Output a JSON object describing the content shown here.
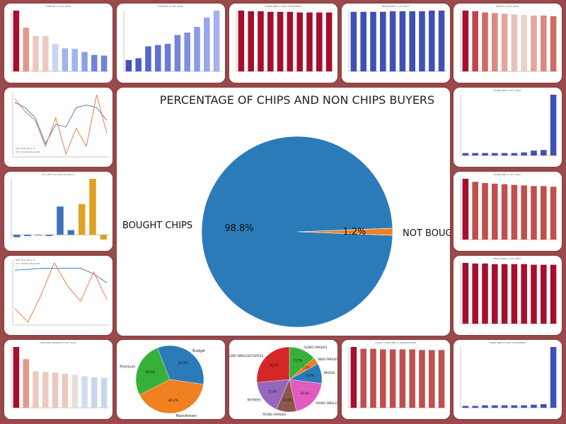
{
  "page": {
    "background": "#9b4a4c"
  },
  "chart_data": [
    {
      "id": "t1",
      "type": "bar",
      "title": "COMPANY vs QTY_SOLD",
      "values": [
        100,
        72,
        58,
        58,
        45,
        38,
        37,
        32,
        27,
        26
      ],
      "colors": [
        "#a50f2d",
        "#e3998a",
        "#ecc9bf",
        "#ecc9bf",
        "#c9d6f0",
        "#9eb6ea",
        "#9eb6ea",
        "#8aa2e6",
        "#6f85da",
        "#6f85da"
      ]
    },
    {
      "id": "t2",
      "type": "bar",
      "title": "COMPANY vs QTY_SOLD",
      "values": [
        18,
        21,
        40,
        42,
        44,
        58,
        62,
        71,
        86,
        97
      ],
      "colors": [
        "#3f51b5",
        "#4b5dc0",
        "#5567c8",
        "#5f71cf",
        "#6a7bd6",
        "#7585dc",
        "#8090e0",
        "#8c9be5",
        "#98a6ea",
        "#a4b1ee"
      ]
    },
    {
      "id": "t3",
      "type": "bar",
      "title": "STORE_NBR vs DAILY CUSTOMERS",
      "values": [
        98,
        97,
        97,
        96,
        96,
        96,
        95,
        95,
        95,
        95
      ],
      "colors": [
        "#a50f2d",
        "#a50f2d",
        "#a50f2d",
        "#a50f2d",
        "#a50f2d",
        "#a50f2d",
        "#a50f2d",
        "#a50f2d",
        "#a50f2d",
        "#a50f2d"
      ]
    },
    {
      "id": "t4",
      "type": "bar",
      "title": "PROD NAME vs QTY SOLD",
      "values": [
        97,
        97,
        97,
        97,
        98,
        98,
        98,
        98,
        99,
        99
      ],
      "colors": [
        "#3f51b5",
        "#3f51b5",
        "#3f51b5",
        "#3f51b5",
        "#3f51b5",
        "#3f51b5",
        "#3f51b5",
        "#3f51b5",
        "#3f51b5",
        "#3f51b5"
      ]
    },
    {
      "id": "t5",
      "type": "bar",
      "title": "MONTH vs QTY_SOLD",
      "values": [
        98,
        97,
        95,
        94,
        93,
        92,
        91,
        90,
        90,
        89
      ],
      "colors": [
        "#a50f2d",
        "#c0444a",
        "#cf6a65",
        "#d98a80",
        "#e2a79c",
        "#e9c0b8",
        "#eed0c9",
        "#e2a79c",
        "#d98a80",
        "#cf6a65"
      ]
    },
    {
      "id": "t7",
      "type": "bar",
      "title": "STORE_NBR vs QTY_SOLD",
      "values": [
        4,
        4,
        4,
        4,
        4,
        4,
        5,
        8,
        9,
        100
      ],
      "colors": [
        "#3f51b5",
        "#3f51b5",
        "#3f51b5",
        "#3f51b5",
        "#3f51b5",
        "#3f51b5",
        "#3f51b5",
        "#3f51b5",
        "#3f51b5",
        "#3f51b5"
      ]
    },
    {
      "id": "t9",
      "type": "bar",
      "title": "STORE_NBR vs QTY_SOLD",
      "values": [
        100,
        95,
        93,
        92,
        91,
        90,
        89,
        88,
        88,
        87
      ],
      "colors": [
        "#a50f2d",
        "#c0504d",
        "#c0504d",
        "#c0504d",
        "#c0504d",
        "#c0504d",
        "#c0504d",
        "#c0504d",
        "#c0504d",
        "#c0504d"
      ]
    },
    {
      "id": "t11",
      "type": "bar",
      "title": "PROD NAME vs QTY SOLD",
      "values": [
        98,
        97,
        97,
        96,
        96,
        96,
        96,
        95,
        95,
        95
      ],
      "colors": [
        "#a50f2d",
        "#a50f2d",
        "#a50f2d",
        "#a50f2d",
        "#a50f2d",
        "#a50f2d",
        "#a50f2d",
        "#a50f2d",
        "#a50f2d",
        "#a50f2d"
      ]
    },
    {
      "id": "t12",
      "type": "bar",
      "title": "LIFESTAGE PREMIUM vs QTY SOLD",
      "values": [
        100,
        80,
        60,
        59,
        58,
        56,
        54,
        52,
        50,
        49
      ],
      "colors": [
        "#a50f2d",
        "#e3998a",
        "#ecc9bf",
        "#ecc9bf",
        "#ecc9bf",
        "#ecc9bf",
        "#e8dede",
        "#d6dcee",
        "#c9d6f0",
        "#c9d6f0"
      ]
    },
    {
      "id": "t15",
      "type": "bar",
      "title": "LOYALTY CARD NBR vs TRANSACTIONS",
      "values": [
        100,
        97,
        97,
        96,
        96,
        96,
        96,
        95,
        95,
        95
      ],
      "colors": [
        "#a50f2d",
        "#c0504d",
        "#c0504d",
        "#c0504d",
        "#c0504d",
        "#c0504d",
        "#c0504d",
        "#c0504d",
        "#c0504d",
        "#c0504d"
      ]
    },
    {
      "id": "t16",
      "type": "bar",
      "title": "STORE_NBR vs DAILY CUSTOMERS",
      "values": [
        3,
        3,
        4,
        4,
        4,
        4,
        4,
        5,
        6,
        100
      ],
      "colors": [
        "#3f51b5",
        "#3f51b5",
        "#3f51b5",
        "#3f51b5",
        "#3f51b5",
        "#3f51b5",
        "#3f51b5",
        "#3f51b5",
        "#3f51b5",
        "#3f51b5"
      ]
    },
    {
      "id": "t6",
      "type": "line",
      "series": [
        {
          "name": "Trial Store 77",
          "color": "#3b73b9",
          "values": [
            82,
            78,
            70,
            50,
            65,
            63,
            78,
            80,
            78,
            68
          ]
        },
        {
          "name": "Control Store 233",
          "color": "#e8703a",
          "values": [
            85,
            75,
            68,
            48,
            70,
            42,
            62,
            48,
            88,
            58
          ]
        }
      ]
    },
    {
      "id": "t10",
      "type": "line",
      "series": [
        {
          "name": "Trial Store 77",
          "color": "#3b73b9",
          "values": [
            72,
            73,
            74,
            74,
            74,
            74,
            68,
            58
          ]
        },
        {
          "name": "Control Store 233",
          "color": "#e8703a",
          "values": [
            30,
            15,
            45,
            80,
            55,
            38,
            70,
            40
          ]
        }
      ]
    },
    {
      "id": "t8",
      "type": "bar",
      "title": "QTY_DIFF (%) Actua the Brand",
      "values": [
        -4,
        -2,
        -1,
        -2,
        48,
        8,
        52,
        95,
        -8
      ],
      "colors": [
        "#3b73b9",
        "#3b73b9",
        "#3b73b9",
        "#3b73b9",
        "#3b73b9",
        "#3b73b9",
        "#e0a020",
        "#e0a020",
        "#e0a020"
      ]
    },
    {
      "id": "main",
      "type": "pie",
      "title": "PERCENTAGE OF CHIPS AND NON CHIPS BUYERS",
      "categories": [
        "BOUGHT CHIPS",
        "NOT BOUGHT CHIPS"
      ],
      "values": [
        98.8,
        1.2
      ],
      "labels": [
        "98.8%",
        "1.2%"
      ],
      "colors": [
        "#2b7bb9",
        "#f08020"
      ]
    },
    {
      "id": "t13",
      "type": "pie",
      "categories": [
        "Budget",
        "Mainstream",
        "Premium"
      ],
      "values": [
        33.3,
        40.2,
        26.5
      ],
      "labels": [
        "33.3%",
        "40.2%",
        "26.5%"
      ],
      "colors": [
        "#2b7bb9",
        "#f08020",
        "#37b03a"
      ]
    },
    {
      "id": "t14",
      "type": "pie",
      "categories": [
        "OLDER FAMILIES",
        "NEW FAMILIES",
        "MIDAGE",
        "YOUNG SINGLES",
        "YOUNG FAMILIES",
        "RETIREES",
        "OLDER SINGLES/COUPLES"
      ],
      "values": [
        13.5,
        3.5,
        10.0,
        19.5,
        10.0,
        17.0,
        26.5
      ],
      "labels": [
        "13.5%",
        "3.5%",
        "10.0%",
        "19.5%",
        "10.0%",
        "17.0%",
        "26.5%"
      ],
      "colors": [
        "#37b03a",
        "#f08020",
        "#2b7bb9",
        "#e05cc0",
        "#8c564b",
        "#9467bd",
        "#d62728"
      ]
    }
  ]
}
